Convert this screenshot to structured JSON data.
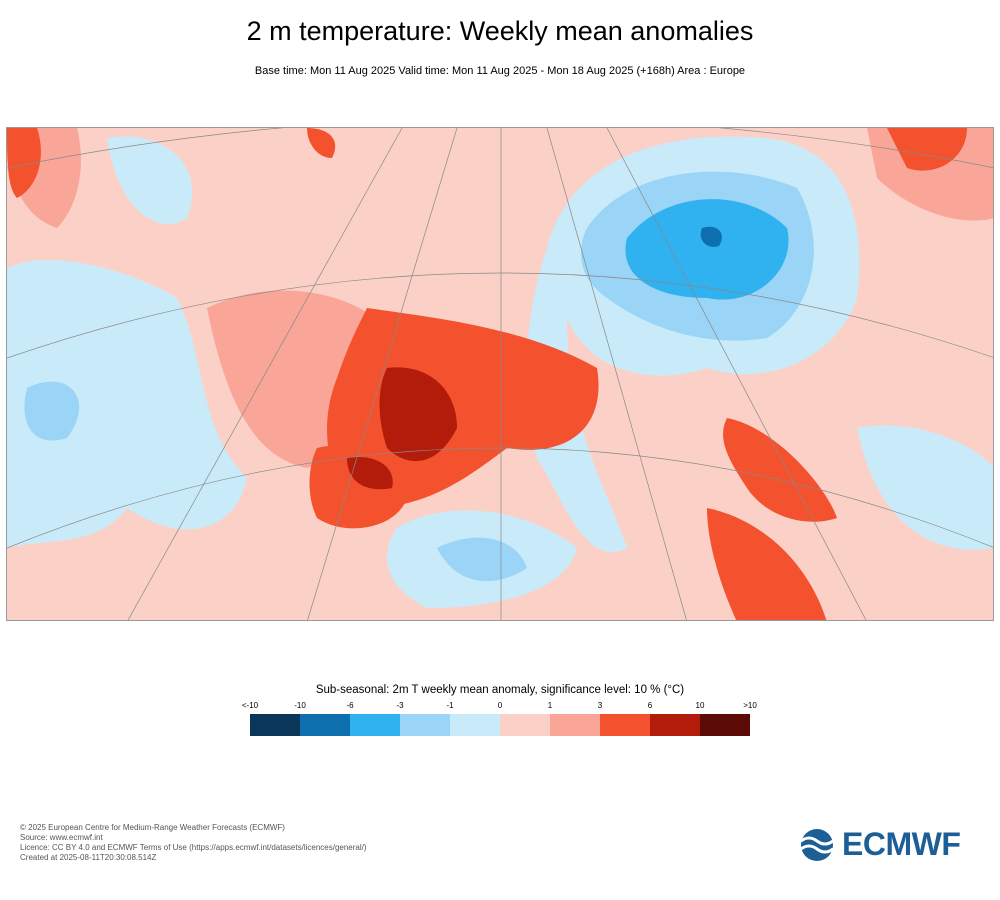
{
  "title": "2 m temperature: Weekly mean anomalies",
  "subtitle": "Base time: Mon 11 Aug 2025 Valid time: Mon 11 Aug 2025 - Mon 18 Aug 2025 (+168h) Area : Europe",
  "legend": {
    "title": "Sub-seasonal: 2m T weekly mean anomaly, significance level: 10 % (°C)",
    "labels": [
      "<-10",
      "-10",
      "-6",
      "-3",
      "-1",
      "0",
      "1",
      "3",
      "6",
      "10",
      ">10"
    ],
    "colors": [
      "#0a3659",
      "#0d6fae",
      "#30b2f0",
      "#9ad4f6",
      "#c9ebf9",
      "#fbd1c7",
      "#f9a698",
      "#f4522e",
      "#b31b0b",
      "#5c0b06"
    ]
  },
  "footer": [
    "© 2025 European Centre for Medium-Range Weather Forecasts (ECMWF)",
    "Source: www.ecmwf.int",
    "Licence: CC BY 4.0 and ECMWF Terms of Use (https://apps.ecmwf.int/datasets/licences/general/)",
    "Created at 2025-08-11T20:30:08.514Z"
  ],
  "logo": "ECMWF"
}
